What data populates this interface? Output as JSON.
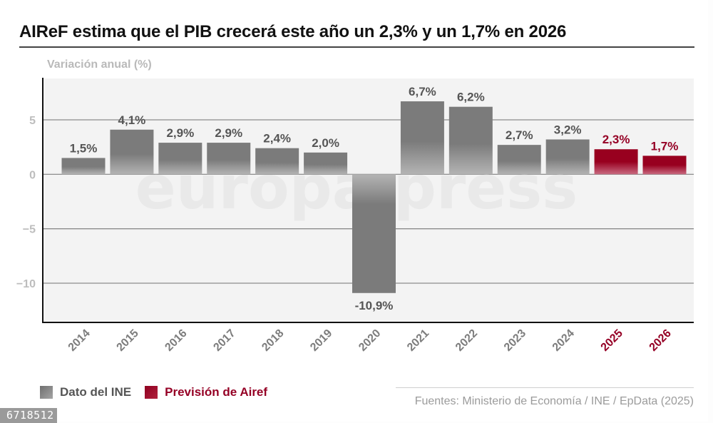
{
  "header": {
    "title": "AIReF estima que el PIB crecerá este año un 2,3% y un 1,7% en 2026"
  },
  "chart_data": {
    "type": "bar",
    "title": "AIReF estima que el PIB crecerá este año un 2,3% y un 1,7% en 2026",
    "ylabel": "Variación anual (%)",
    "xlabel": "",
    "ylim": [
      -13.6,
      8.8
    ],
    "yticks": [
      5,
      0,
      -5,
      -10
    ],
    "ytick_labels": [
      "5",
      "0",
      "−5",
      "−10"
    ],
    "grid": true,
    "categories": [
      "2014",
      "2015",
      "2016",
      "2017",
      "2018",
      "2019",
      "2020",
      "2021",
      "2022",
      "2023",
      "2024",
      "2025",
      "2026"
    ],
    "values": [
      1.5,
      4.1,
      2.9,
      2.9,
      2.4,
      2.0,
      -10.9,
      6.7,
      6.2,
      2.7,
      3.2,
      2.3,
      1.7
    ],
    "data_labels": [
      "1,5%",
      "4,1%",
      "2,9%",
      "2,9%",
      "2,4%",
      "2,0%",
      "-10,9%",
      "6,7%",
      "6,2%",
      "2,7%",
      "3,2%",
      "2,3%",
      "1,7%"
    ],
    "series_of_bar": [
      "ine",
      "ine",
      "ine",
      "ine",
      "ine",
      "ine",
      "ine",
      "ine",
      "ine",
      "ine",
      "ine",
      "airef",
      "airef"
    ],
    "legend": [
      {
        "key": "ine",
        "label": "Dato del INE",
        "color": "#7a7a7a"
      },
      {
        "key": "airef",
        "label": "Previsión de Airef",
        "color": "#950025"
      }
    ],
    "legend_position": "bottom-left"
  },
  "colors": {
    "ine_bar": "#7b7b7b",
    "ine_bar_light": "#b4b4b4",
    "airef_bar": "#98001f",
    "airef_bar_light": "#c76077",
    "ine_text": "#555555",
    "airef_text": "#950025",
    "plot_bg": "#f3f3f3",
    "gridline": "#8c8c8c",
    "tick_label": "#bdbdbd"
  },
  "watermark": "europa press",
  "footer": {
    "source": "Fuentes: Ministerio de Economía / INE / EpData (2025)",
    "image_id": "6718512"
  }
}
